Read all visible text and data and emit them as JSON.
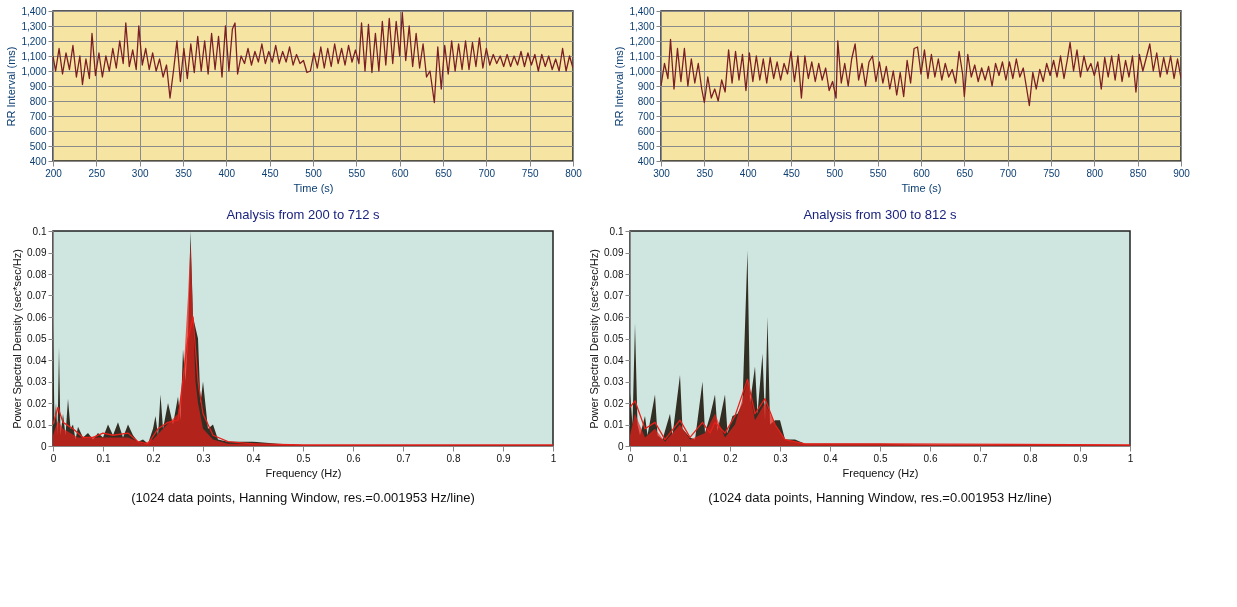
{
  "chart_data": [
    {
      "type": "line",
      "xlabel": "Time (s)",
      "ylabel": "RR Interval (ms)",
      "grid": true,
      "xlim": [
        200,
        800
      ],
      "xticks": [
        200,
        250,
        300,
        350,
        400,
        450,
        500,
        550,
        600,
        650,
        700,
        750,
        800
      ],
      "ylim": [
        400,
        1400
      ],
      "yticks": [
        400,
        500,
        600,
        700,
        800,
        900,
        {
          "value": 1000,
          "label": "1,000"
        },
        {
          "value": 1100,
          "label": "1,100"
        },
        {
          "value": 1200,
          "label": "1,200"
        },
        {
          "value": 1300,
          "label": "1,300"
        },
        {
          "value": 1400,
          "label": "1,400"
        }
      ],
      "series": [
        {
          "type": "line",
          "color": "#7b1f24",
          "x": [
            200,
            203,
            207,
            211,
            215,
            219,
            223,
            227,
            231,
            234,
            238,
            242,
            245,
            249,
            253,
            257,
            261,
            265,
            269,
            273,
            277,
            281,
            284,
            288,
            292,
            296,
            299,
            303,
            307,
            311,
            315,
            319,
            323,
            327,
            331,
            335,
            339,
            343,
            347,
            351,
            355,
            359,
            363,
            367,
            371,
            375,
            379,
            383,
            387,
            391,
            395,
            399,
            403,
            407,
            410,
            413,
            417,
            421,
            425,
            429,
            433,
            437,
            441,
            445,
            449,
            453,
            457,
            461,
            465,
            469,
            473,
            477,
            481,
            485,
            489,
            493,
            497,
            501,
            505,
            509,
            513,
            517,
            521,
            525,
            529,
            533,
            537,
            541,
            545,
            549,
            553,
            556,
            560,
            564,
            568,
            572,
            576,
            580,
            584,
            588,
            592,
            596,
            600,
            603,
            607,
            611,
            615,
            619,
            623,
            627,
            631,
            635,
            640,
            644,
            648,
            652,
            656,
            660,
            664,
            668,
            672,
            676,
            680,
            684,
            688,
            692,
            696,
            700,
            704,
            708,
            712,
            716,
            720,
            724,
            728,
            732,
            736,
            740,
            744,
            748,
            752,
            756,
            760,
            764,
            768,
            772,
            776,
            780,
            784,
            788,
            792,
            796,
            800
          ],
          "values": [
            1100,
            1000,
            1150,
            980,
            1120,
            1010,
            1170,
            960,
            1100,
            910,
            1080,
            950,
            1250,
            970,
            1120,
            960,
            1100,
            1000,
            1150,
            1020,
            1200,
            1050,
            1320,
            1030,
            1140,
            1010,
            1300,
            1040,
            1150,
            1010,
            1120,
            1000,
            1080,
            960,
            1040,
            820,
            1000,
            1200,
            930,
            1150,
            950,
            1180,
            990,
            1230,
            1000,
            1200,
            980,
            1250,
            1010,
            1230,
            960,
            1300,
            1000,
            1280,
            1320,
            980,
            1100,
            1050,
            1150,
            1040,
            1130,
            1060,
            1180,
            1050,
            1130,
            1060,
            1170,
            1050,
            1130,
            1060,
            1160,
            1040,
            1110,
            1050,
            1070,
            990,
            1000,
            1120,
            1020,
            1160,
            1020,
            1150,
            1030,
            1180,
            1050,
            1150,
            1040,
            1170,
            1060,
            1140,
            1050,
            1320,
            1000,
            1310,
            990,
            1250,
            1000,
            1330,
            1040,
            1350,
            1050,
            1330,
            1100,
            1390,
            1070,
            1300,
            1030,
            1250,
            1020,
            1180,
            960,
            1000,
            790,
            1160,
            880,
            1170,
            980,
            1200,
            1000,
            1180,
            1010,
            1200,
            1010,
            1190,
            1030,
            1220,
            1020,
            1150,
            1040,
            1110,
            1050,
            1100,
            1030,
            1110,
            1030,
            1100,
            1040,
            1130,
            1030,
            1120,
            1040,
            1110,
            1000,
            1110,
            1030,
            1100,
            1010,
            1080,
            1000,
            1150,
            1000,
            1100,
            1020
          ]
        }
      ]
    },
    {
      "type": "line",
      "xlabel": "Time (s)",
      "ylabel": "RR Interval (ms)",
      "grid": true,
      "xlim": [
        300,
        900
      ],
      "xticks": [
        300,
        350,
        400,
        450,
        500,
        550,
        600,
        650,
        700,
        750,
        800,
        850,
        900
      ],
      "ylim": [
        400,
        1400
      ],
      "yticks": [
        400,
        500,
        600,
        700,
        800,
        900,
        {
          "value": 1000,
          "label": "1,000"
        },
        {
          "value": 1100,
          "label": "1,100"
        },
        {
          "value": 1200,
          "label": "1,200"
        },
        {
          "value": 1300,
          "label": "1,300"
        },
        {
          "value": 1400,
          "label": "1,400"
        }
      ],
      "series": [
        {
          "type": "line",
          "color": "#7b1f24",
          "x": [
            300,
            304,
            308,
            311,
            315,
            319,
            323,
            327,
            331,
            335,
            339,
            343,
            347,
            350,
            354,
            358,
            362,
            366,
            370,
            374,
            378,
            382,
            386,
            390,
            394,
            398,
            402,
            406,
            410,
            414,
            418,
            422,
            426,
            430,
            434,
            438,
            442,
            446,
            450,
            454,
            458,
            462,
            466,
            470,
            474,
            478,
            482,
            486,
            490,
            494,
            498,
            502,
            504,
            508,
            512,
            516,
            520,
            524,
            528,
            532,
            536,
            540,
            544,
            548,
            552,
            556,
            560,
            564,
            568,
            572,
            576,
            580,
            584,
            588,
            592,
            596,
            600,
            604,
            608,
            612,
            616,
            620,
            624,
            628,
            632,
            636,
            640,
            644,
            648,
            650,
            654,
            658,
            662,
            666,
            670,
            674,
            678,
            682,
            686,
            690,
            694,
            698,
            702,
            706,
            710,
            714,
            718,
            722,
            725,
            729,
            733,
            737,
            741,
            745,
            749,
            753,
            757,
            761,
            765,
            769,
            772,
            776,
            780,
            784,
            788,
            792,
            796,
            800,
            804,
            808,
            812,
            816,
            820,
            824,
            828,
            832,
            836,
            840,
            844,
            848,
            852,
            856,
            860,
            864,
            868,
            872,
            876,
            880,
            884,
            888,
            892,
            896,
            900
          ],
          "values": [
            900,
            1050,
            950,
            1210,
            880,
            1150,
            930,
            1150,
            900,
            1080,
            920,
            1050,
            880,
            790,
            960,
            820,
            880,
            800,
            940,
            860,
            1140,
            920,
            1130,
            940,
            1110,
            870,
            1120,
            930,
            1100,
            940,
            1080,
            920,
            1090,
            950,
            1060,
            940,
            1050,
            980,
            1130,
            930,
            1100,
            820,
            1100,
            950,
            1060,
            930,
            1050,
            940,
            1020,
            870,
            930,
            820,
            1200,
            920,
            1050,
            900,
            1080,
            1180,
            940,
            1050,
            900,
            1060,
            1100,
            930,
            1060,
            920,
            1030,
            880,
            1000,
            840,
            990,
            830,
            1070,
            920,
            1150,
            1160,
            980,
            1140,
            950,
            1110,
            960,
            1080,
            940,
            1050,
            960,
            1010,
            920,
            1130,
            980,
            830,
            1110,
            960,
            1040,
            930,
            1020,
            940,
            1030,
            900,
            1050,
            970,
            1060,
            940,
            1060,
            950,
            1080,
            960,
            1020,
            880,
            770,
            990,
            880,
            1010,
            930,
            1050,
            970,
            1070,
            960,
            1100,
            950,
            1080,
            1190,
            1000,
            1140,
            960,
            1100,
            1000,
            1050,
            970,
            1060,
            880,
            1090,
            960,
            1100,
            940,
            1110,
            930,
            1070,
            960,
            1100,
            860,
            1110,
            1000,
            1090,
            1180,
            1000,
            1120,
            960,
            1090,
            980,
            1100,
            950,
            1080,
            950
          ]
        }
      ]
    },
    {
      "type": "area",
      "title": "Analysis from 200 to 712 s",
      "xlabel": "Frequency (Hz)",
      "ylabel": "Power Spectral Density (sec*sec/Hz)",
      "annotations": [
        "(1024 data points, Hanning Window, res.=0.001953 Hz/line)"
      ],
      "xlim": [
        0,
        1
      ],
      "xticks": [
        0,
        0.1,
        0.2,
        0.3,
        0.4,
        0.5,
        0.6,
        0.7,
        0.8,
        0.9,
        1
      ],
      "ylim": [
        0,
        0.1
      ],
      "yticks": [
        0,
        0.01,
        0.02,
        0.03,
        0.04,
        0.05,
        0.06,
        0.07,
        0.08,
        0.09,
        0.1
      ],
      "series": [
        {
          "type": "area",
          "color": "#2a2418",
          "x": [
            0,
            0.003,
            0.006,
            0.009,
            0.012,
            0.015,
            0.02,
            0.025,
            0.03,
            0.035,
            0.04,
            0.045,
            0.05,
            0.06,
            0.07,
            0.08,
            0.09,
            0.1,
            0.11,
            0.12,
            0.13,
            0.14,
            0.15,
            0.16,
            0.17,
            0.18,
            0.19,
            0.2,
            0.205,
            0.21,
            0.215,
            0.22,
            0.23,
            0.24,
            0.25,
            0.255,
            0.26,
            0.265,
            0.27,
            0.275,
            0.28,
            0.285,
            0.29,
            0.295,
            0.3,
            0.31,
            0.32,
            0.33,
            0.35,
            0.37,
            0.4,
            0.45,
            0.5,
            0.6,
            0.7,
            0.8,
            0.9,
            1
          ],
          "values": [
            0.057,
            0.01,
            0.02,
            0.005,
            0.046,
            0.005,
            0.015,
            0.005,
            0.022,
            0.008,
            0.01,
            0.003,
            0.009,
            0.004,
            0.006,
            0.003,
            0.006,
            0.004,
            0.01,
            0.005,
            0.011,
            0.004,
            0.01,
            0.005,
            0.002,
            0.003,
            0.001,
            0.008,
            0.014,
            0.005,
            0.024,
            0.008,
            0.02,
            0.01,
            0.023,
            0.012,
            0.045,
            0.03,
            0.05,
            0.1,
            0.06,
            0.055,
            0.05,
            0.02,
            0.03,
            0.008,
            0.01,
            0.003,
            0.002,
            0.002,
            0.002,
            0.001,
            0.0005,
            0.0005,
            0.0005,
            0.0005,
            0.0005,
            0.0005
          ]
        },
        {
          "type": "area",
          "color": "#e8201a",
          "x": [
            0,
            0.01,
            0.02,
            0.05,
            0.1,
            0.15,
            0.18,
            0.2,
            0.22,
            0.25,
            0.26,
            0.27,
            0.275,
            0.28,
            0.285,
            0.29,
            0.3,
            0.32,
            0.35,
            0.4,
            0.45,
            1
          ],
          "values": [
            0.005,
            0.012,
            0.008,
            0.004,
            0.004,
            0.004,
            0.001,
            0.003,
            0.008,
            0.015,
            0.03,
            0.07,
            0.095,
            0.06,
            0.03,
            0.02,
            0.008,
            0.003,
            0.001,
            0.001,
            0.0005,
            0.0003
          ]
        },
        {
          "type": "line",
          "color": "#e8201a",
          "x": [
            0,
            0.01,
            0.02,
            0.04,
            0.06,
            0.08,
            0.1,
            0.12,
            0.15,
            0.17,
            0.19,
            0.21,
            0.23,
            0.25,
            0.27,
            0.28,
            0.29,
            0.3,
            0.32,
            0.35,
            0.4,
            0.5,
            1
          ],
          "values": [
            0.01,
            0.018,
            0.011,
            0.008,
            0.004,
            0.004,
            0.006,
            0.005,
            0.006,
            0.002,
            0.001,
            0.008,
            0.011,
            0.012,
            0.05,
            0.06,
            0.03,
            0.015,
            0.005,
            0.002,
            0.001,
            0.0005,
            0.0005
          ]
        }
      ]
    },
    {
      "type": "area",
      "title": "Analysis from 300 to 812 s",
      "xlabel": "Frequency (Hz)",
      "ylabel": "Power Spectral Density (sec*sec/Hz)",
      "annotations": [
        "(1024 data points, Hanning Window, res.=0.001953 Hz/line)"
      ],
      "xlim": [
        0,
        1
      ],
      "xticks": [
        0,
        0.1,
        0.2,
        0.3,
        0.4,
        0.5,
        0.6,
        0.7,
        0.8,
        0.9,
        1
      ],
      "ylim": [
        0,
        0.1
      ],
      "yticks": [
        0,
        0.01,
        0.02,
        0.03,
        0.04,
        0.05,
        0.06,
        0.07,
        0.08,
        0.09,
        0.1
      ],
      "series": [
        {
          "type": "area",
          "color": "#2a2418",
          "x": [
            0,
            0.005,
            0.01,
            0.015,
            0.02,
            0.03,
            0.035,
            0.05,
            0.055,
            0.065,
            0.08,
            0.085,
            0.1,
            0.105,
            0.12,
            0.13,
            0.145,
            0.15,
            0.16,
            0.17,
            0.175,
            0.19,
            0.195,
            0.205,
            0.215,
            0.225,
            0.235,
            0.24,
            0.25,
            0.255,
            0.265,
            0.27,
            0.275,
            0.28,
            0.29,
            0.3,
            0.31,
            0.33,
            0.35,
            0.4,
            0.5,
            0.6,
            1
          ],
          "values": [
            0.025,
            0.01,
            0.057,
            0.01,
            0.005,
            0.014,
            0.005,
            0.024,
            0.005,
            0.003,
            0.015,
            0.005,
            0.033,
            0.008,
            0.004,
            0.003,
            0.03,
            0.006,
            0.014,
            0.024,
            0.007,
            0.024,
            0.006,
            0.014,
            0.015,
            0.02,
            0.091,
            0.02,
            0.037,
            0.015,
            0.043,
            0.012,
            0.06,
            0.01,
            0.012,
            0.012,
            0.003,
            0.003,
            0.001,
            0.001,
            0.001,
            0.0005,
            0.0005
          ]
        },
        {
          "type": "area",
          "color": "#e8201a",
          "x": [
            0,
            0.01,
            0.03,
            0.05,
            0.07,
            0.1,
            0.12,
            0.15,
            0.17,
            0.19,
            0.21,
            0.235,
            0.25,
            0.27,
            0.29,
            0.31,
            0.35,
            1
          ],
          "values": [
            0.005,
            0.015,
            0.004,
            0.008,
            0.002,
            0.01,
            0.003,
            0.006,
            0.015,
            0.004,
            0.01,
            0.03,
            0.012,
            0.02,
            0.01,
            0.003,
            0.001,
            0.0005
          ]
        },
        {
          "type": "line",
          "color": "#e8201a",
          "x": [
            0,
            0.01,
            0.03,
            0.05,
            0.07,
            0.1,
            0.12,
            0.145,
            0.16,
            0.17,
            0.19,
            0.21,
            0.235,
            0.25,
            0.27,
            0.29,
            0.31,
            0.35,
            0.5,
            1
          ],
          "values": [
            0.018,
            0.021,
            0.008,
            0.011,
            0.003,
            0.012,
            0.004,
            0.011,
            0.006,
            0.011,
            0.006,
            0.014,
            0.031,
            0.015,
            0.022,
            0.01,
            0.003,
            0.001,
            0.001,
            0.0005
          ]
        }
      ]
    }
  ]
}
